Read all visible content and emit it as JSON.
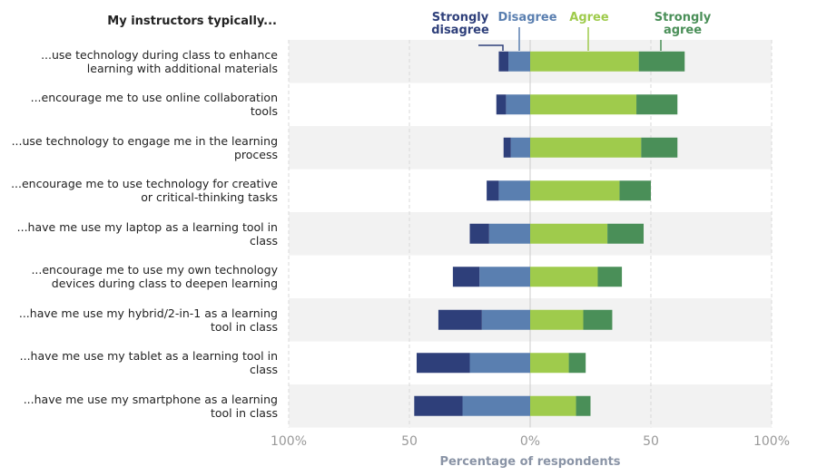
{
  "chart_data": {
    "type": "diverging-bar",
    "title": "My instructors typically...",
    "x_label": "Percentage of respondents",
    "categories": [
      "...use technology during class to enhance learning with additional materials",
      "...encourage me to use online collaboration tools",
      "...use technology to engage me in the learning process",
      "...encourage me to use technology for creative or critical-thinking tasks",
      "...have me use my laptop as a learning tool in class",
      "...encourage me to use my own technology devices during class to deepen learning",
      "...have me use my hybrid/2-in-1 as a learning tool in class",
      "...have me use my tablet as a learning tool in class",
      "...have me use my smartphone as a learning tool in class"
    ],
    "series": [
      {
        "name": "Strongly disagree",
        "color": "#2e3f7a",
        "values": [
          -4,
          -4,
          -3,
          -5,
          -8,
          -11,
          -18,
          -22,
          -20
        ]
      },
      {
        "name": "Disagree",
        "color": "#5a7fb0",
        "values": [
          -9,
          -10,
          -8,
          -13,
          -17,
          -21,
          -20,
          -25,
          -28
        ]
      },
      {
        "name": "Agree",
        "color": "#9fcb4c",
        "values": [
          45,
          44,
          46,
          37,
          32,
          28,
          22,
          16,
          19
        ]
      },
      {
        "name": "Strongly agree",
        "color": "#4a8f58",
        "values": [
          19,
          17,
          15,
          13,
          15,
          10,
          12,
          7,
          6
        ]
      }
    ],
    "xlim": [
      -100,
      100
    ],
    "xticks": [
      {
        "value": -100,
        "label": "100%"
      },
      {
        "value": -50,
        "label": "50"
      },
      {
        "value": 0,
        "label": "0%"
      },
      {
        "value": 50,
        "label": "50"
      },
      {
        "value": 100,
        "label": "100%"
      }
    ],
    "grid": true
  }
}
